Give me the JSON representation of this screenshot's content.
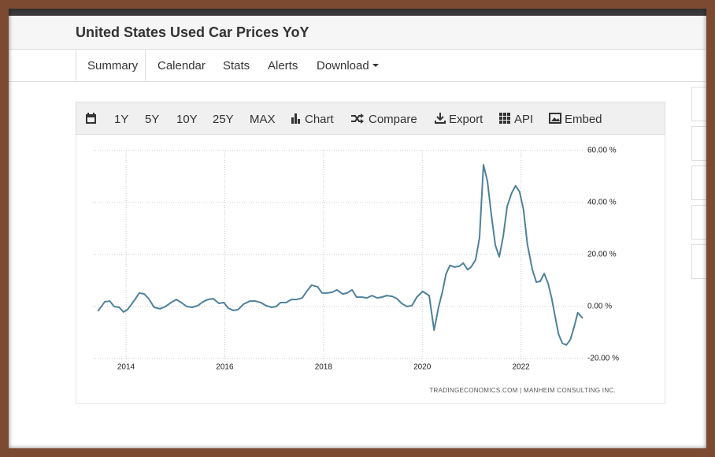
{
  "header": {
    "title": "United States Used Car Prices YoY"
  },
  "tabs": [
    "Summary",
    "Calendar",
    "Stats",
    "Alerts",
    "Download"
  ],
  "toolbar": [
    "1Y",
    "5Y",
    "10Y",
    "25Y",
    "MAX",
    "Chart",
    "Compare",
    "Export",
    "API",
    "Embed"
  ],
  "chart_data": {
    "type": "line",
    "source": "TRADINGECONOMICS.COM | MANHEIM CONSULTING INC.",
    "x": [
      2013.43,
      2013.57,
      2013.67,
      2013.76,
      2013.86,
      2013.95,
      2014.03,
      2014.16,
      2014.27,
      2014.37,
      2014.46,
      2014.57,
      2014.69,
      2014.8,
      2014.91,
      2015.02,
      2015.12,
      2015.23,
      2015.34,
      2015.45,
      2015.56,
      2015.66,
      2015.77,
      2015.88,
      2015.98,
      2016.07,
      2016.17,
      2016.27,
      2016.38,
      2016.51,
      2016.62,
      2016.73,
      2016.84,
      2016.95,
      2017.04,
      2017.13,
      2017.24,
      2017.35,
      2017.46,
      2017.57,
      2017.67,
      2017.76,
      2017.88,
      2017.97,
      2018.07,
      2018.18,
      2018.27,
      2018.39,
      2018.48,
      2018.58,
      2018.67,
      2018.78,
      2018.88,
      2018.98,
      2019.09,
      2019.18,
      2019.28,
      2019.39,
      2019.49,
      2019.58,
      2019.69,
      2019.79,
      2019.89,
      2020.01,
      2020.14,
      2020.24,
      2020.33,
      2020.41,
      2020.48,
      2020.56,
      2020.65,
      2020.75,
      2020.83,
      2020.92,
      2020.99,
      2021.08,
      2021.16,
      2021.24,
      2021.32,
      2021.4,
      2021.48,
      2021.56,
      2021.64,
      2021.72,
      2021.81,
      2021.89,
      2021.97,
      2022.05,
      2022.13,
      2022.23,
      2022.31,
      2022.39,
      2022.47,
      2022.55,
      2022.62,
      2022.68,
      2022.76,
      2022.84,
      2022.92,
      2023.0,
      2023.08,
      2023.15,
      2023.25
    ],
    "series": [
      {
        "name": "Used Car Prices YoY",
        "color": "#4f819c",
        "values": [
          -1.8,
          1.8,
          2.1,
          0,
          -0.3,
          -2.1,
          -1.2,
          2.1,
          5.2,
          4.8,
          3,
          -0.3,
          -0.9,
          0,
          1.5,
          2.7,
          1.5,
          0,
          -0.3,
          0.3,
          1.8,
          2.7,
          3,
          1.2,
          1.5,
          -0.6,
          -1.5,
          -1.2,
          0.9,
          2.1,
          2.1,
          1.5,
          0.3,
          -0.3,
          0,
          1.5,
          1.5,
          2.7,
          2.7,
          3.3,
          6.1,
          8.2,
          7.6,
          5.2,
          5.2,
          5.5,
          6.4,
          4.8,
          5.2,
          6.4,
          3.6,
          3.6,
          3.3,
          4.2,
          3.3,
          3.6,
          4.2,
          3.9,
          3,
          1.2,
          0,
          0.3,
          3.6,
          5.8,
          4.2,
          -9.1,
          -0.3,
          5.8,
          12.4,
          15.8,
          15.2,
          15.5,
          16.7,
          14.2,
          15.2,
          17.9,
          26.4,
          54.5,
          48.2,
          35.2,
          23.6,
          19.1,
          27,
          38.5,
          43.6,
          46.4,
          44.2,
          37.3,
          23.9,
          14.2,
          9.4,
          9.7,
          12.7,
          8.8,
          3.3,
          -2.7,
          -10.6,
          -14.2,
          -14.8,
          -12.7,
          -7.6,
          -2.4,
          -4.5
        ]
      }
    ],
    "xlim": [
      2013.33,
      2023.25
    ],
    "xticks": [
      2014,
      2016,
      2018,
      2020,
      2022
    ],
    "ylim": [
      -20,
      60
    ],
    "yticks": [
      {
        "value": -20,
        "label": "-20.00 %"
      },
      {
        "value": 0,
        "label": "0.00 %"
      },
      {
        "value": 20,
        "label": "20.00 %"
      },
      {
        "value": 40,
        "label": "40.00 %"
      },
      {
        "value": 60,
        "label": "60.00 %"
      }
    ],
    "grid": true
  }
}
